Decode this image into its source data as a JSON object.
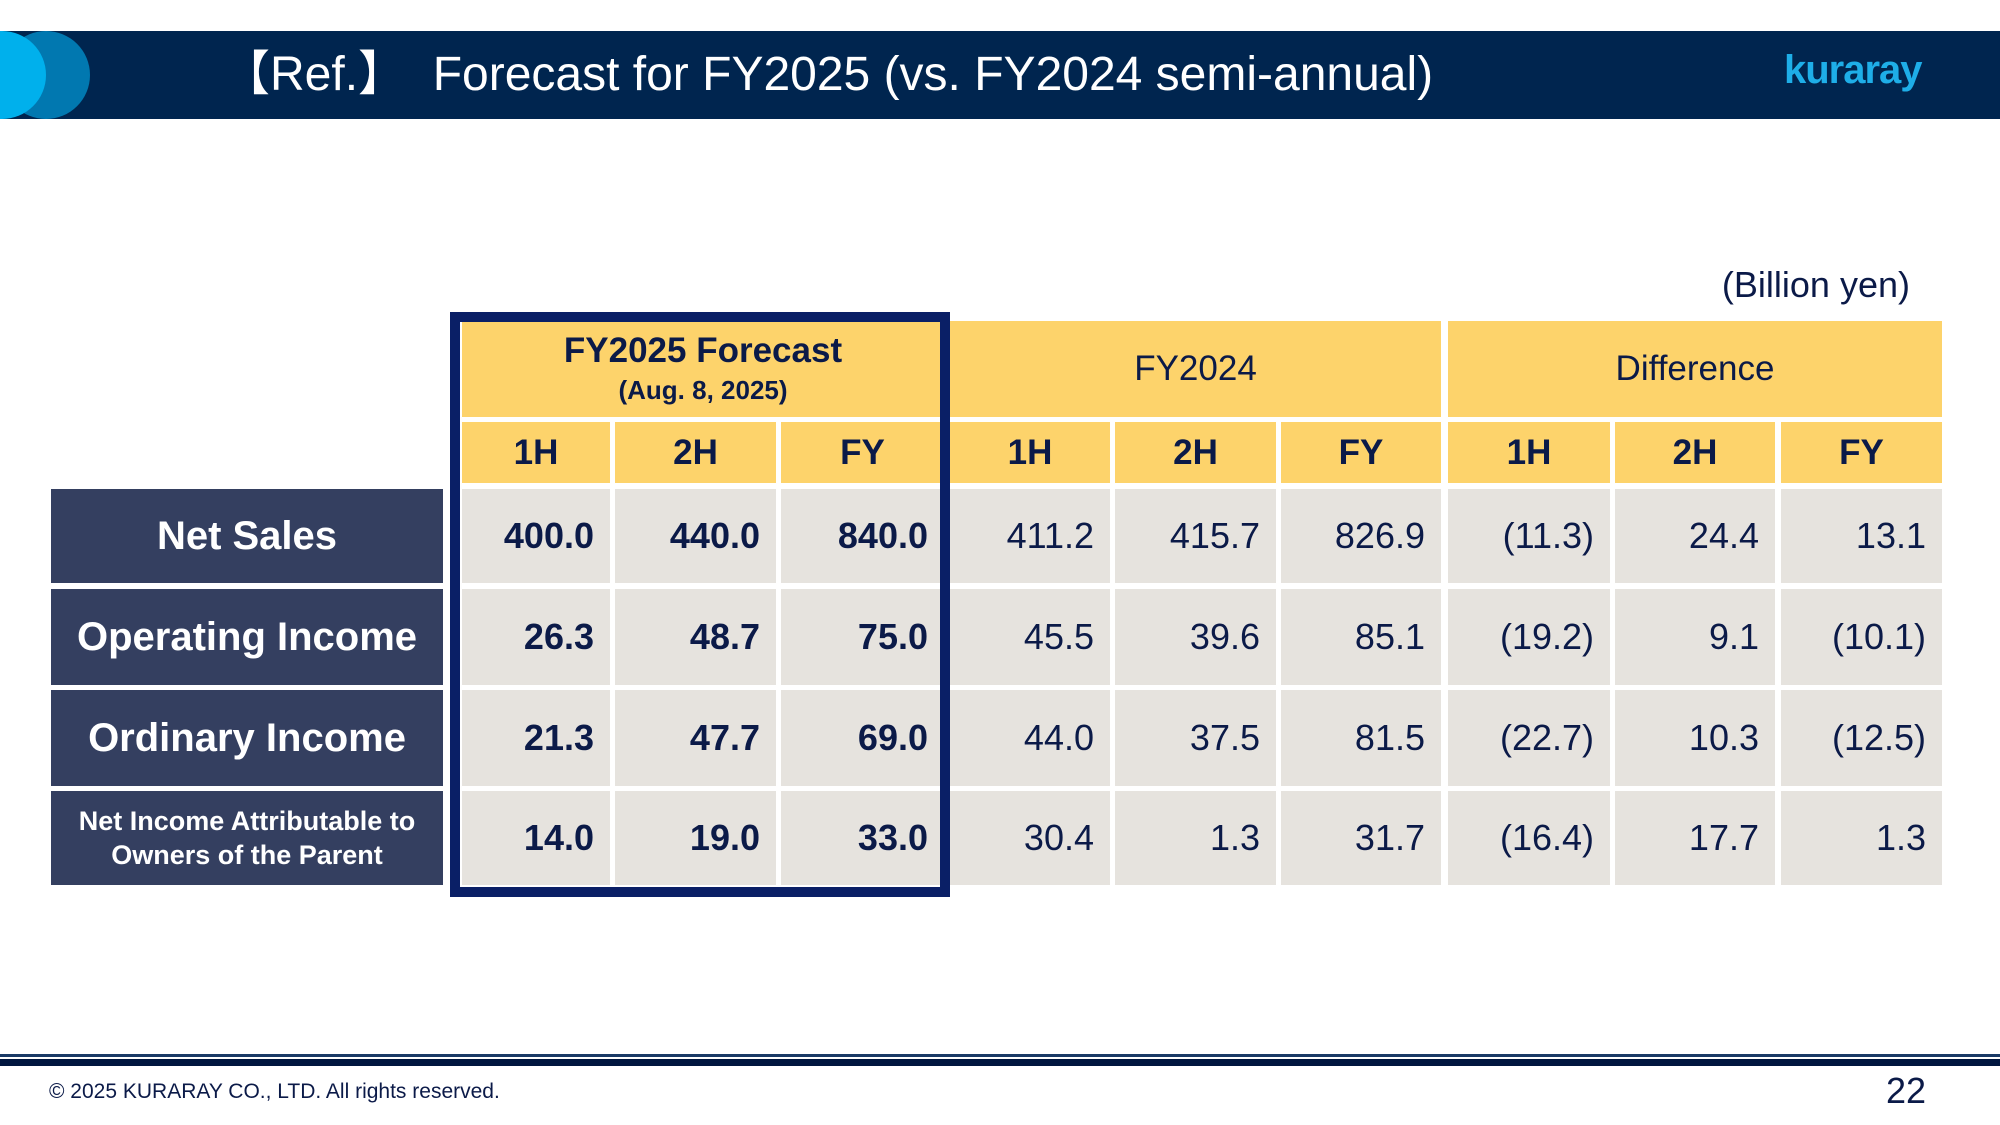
{
  "header": {
    "title": "【Ref.】  Forecast for FY2025 (vs. FY2024 semi-annual)",
    "logo": "kuraray"
  },
  "unit": "(Billion yen)",
  "table": {
    "groups": [
      {
        "title": "FY2025 Forecast",
        "subtitle": "(Aug. 8, 2025)"
      },
      {
        "title": "FY2024"
      },
      {
        "title": "Difference"
      }
    ],
    "subheaders": [
      "1H",
      "2H",
      "FY",
      "1H",
      "2H",
      "FY",
      "1H",
      "2H",
      "FY"
    ],
    "rows": [
      {
        "label": "Net Sales",
        "values": [
          "400.0",
          "440.0",
          "840.0",
          "411.2",
          "415.7",
          "826.9",
          "(11.3)",
          "24.4",
          "13.1"
        ]
      },
      {
        "label": "Operating Income",
        "values": [
          "26.3",
          "48.7",
          "75.0",
          "45.5",
          "39.6",
          "85.1",
          "(19.2)",
          "9.1",
          "(10.1)"
        ]
      },
      {
        "label": "Ordinary Income",
        "values": [
          "21.3",
          "47.7",
          "69.0",
          "44.0",
          "37.5",
          "81.5",
          "(22.7)",
          "10.3",
          "(12.5)"
        ]
      },
      {
        "label": "Net Income Attributable to Owners of the Parent",
        "values": [
          "14.0",
          "19.0",
          "33.0",
          "30.4",
          "1.3",
          "31.7",
          "(16.4)",
          "17.7",
          "1.3"
        ]
      }
    ]
  },
  "footer": {
    "copyright": "© 2025 KURARAY CO., LTD. All rights reserved.",
    "page": "22"
  },
  "colors": {
    "header_band": "#00254f",
    "highlight_header": "#fdd36b",
    "cell": "#e6e3de",
    "row_label": "#343f60",
    "forecast_box": "#0a1f66",
    "logo": "#1eaee8"
  }
}
